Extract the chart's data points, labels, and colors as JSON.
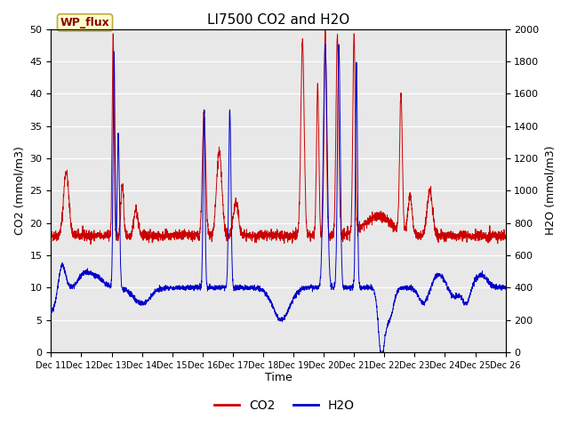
{
  "title": "LI7500 CO2 and H2O",
  "xlabel": "Time",
  "ylabel_left": "CO2 (mmol/m3)",
  "ylabel_right": "H2O (mmol/m3)",
  "xlim_days": [
    11,
    26
  ],
  "ylim_co2": [
    0,
    50
  ],
  "ylim_h2o": [
    0,
    2000
  ],
  "yticks_co2": [
    0,
    5,
    10,
    15,
    20,
    25,
    30,
    35,
    40,
    45,
    50
  ],
  "yticks_h2o": [
    0,
    200,
    400,
    600,
    800,
    1000,
    1200,
    1400,
    1600,
    1800,
    2000
  ],
  "xtick_labels": [
    "Dec 11",
    "Dec 12",
    "Dec 13",
    "Dec 14",
    "Dec 15",
    "Dec 16",
    "Dec 17",
    "Dec 18",
    "Dec 19",
    "Dec 20",
    "Dec 21",
    "Dec 22",
    "Dec 23",
    "Dec 24",
    "Dec 25",
    "Dec 26"
  ],
  "co2_color": "#cc0000",
  "h2o_color": "#0000cc",
  "background_color": "#e8e8e8",
  "annotation_text": "WP_flux",
  "annotation_bg": "#ffffcc",
  "annotation_border": "#bbaa44",
  "legend_co2": "CO2",
  "legend_h2o": "H2O",
  "title_fontsize": 11,
  "axis_label_fontsize": 9,
  "tick_fontsize": 8
}
